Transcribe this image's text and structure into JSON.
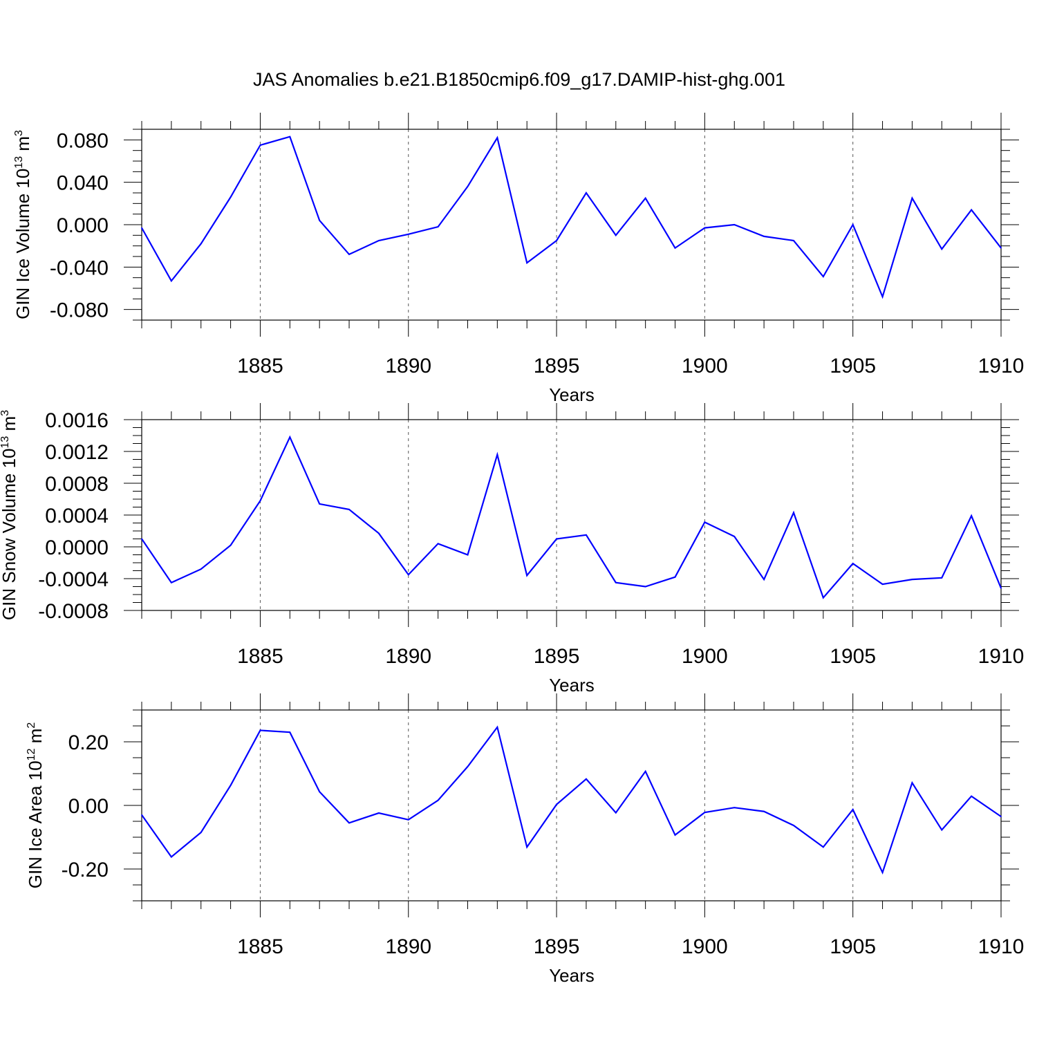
{
  "title": "JAS Anomalies b.e21.B1850cmip6.f09_g17.DAMIP-hist-ghg.001",
  "chart_data": [
    {
      "type": "line",
      "ylabel": "GIN Ice Volume 10",
      "ylabel_exp": "13",
      "ylabel_unit": "m",
      "ylabel_unit_exp": "3",
      "xlabel": "Years",
      "xlim": [
        1881,
        1910
      ],
      "ylim": [
        -0.09,
        0.09
      ],
      "yticks": [
        -0.08,
        -0.04,
        0.0,
        0.04,
        0.08
      ],
      "ytick_labels": [
        "-0.080",
        "-0.040",
        "0.000",
        "0.040",
        "0.080"
      ],
      "xticks": [
        1885,
        1890,
        1895,
        1900,
        1905,
        1910
      ],
      "xtick_labels": [
        "1885",
        "1890",
        "1895",
        "1900",
        "1905",
        "1910"
      ],
      "color": "#0000ff",
      "x": [
        1881,
        1882,
        1883,
        1884,
        1885,
        1886,
        1887,
        1888,
        1889,
        1890,
        1891,
        1892,
        1893,
        1894,
        1895,
        1896,
        1897,
        1898,
        1899,
        1900,
        1901,
        1902,
        1903,
        1904,
        1905,
        1906,
        1907,
        1908,
        1909,
        1910
      ],
      "values": [
        -0.003,
        -0.053,
        -0.018,
        0.026,
        0.075,
        0.083,
        0.004,
        -0.028,
        -0.015,
        -0.009,
        -0.002,
        0.036,
        0.082,
        -0.036,
        -0.015,
        0.03,
        -0.01,
        0.025,
        -0.022,
        -0.003,
        0.0,
        -0.011,
        -0.015,
        -0.049,
        0.0,
        -0.068,
        0.025,
        -0.023,
        0.014,
        -0.022
      ]
    },
    {
      "type": "line",
      "ylabel": "GIN Snow Volume 10",
      "ylabel_exp": "13",
      "ylabel_unit": "m",
      "ylabel_unit_exp": "3",
      "xlabel": "Years",
      "xlim": [
        1881,
        1910
      ],
      "ylim": [
        -0.0008,
        0.0016
      ],
      "yticks": [
        -0.0008,
        -0.0004,
        0.0,
        0.0004,
        0.0008,
        0.0012,
        0.0016
      ],
      "ytick_labels": [
        "-0.0008",
        "-0.0004",
        "0.0000",
        "0.0004",
        "0.0008",
        "0.0012",
        "0.0016"
      ],
      "xticks": [
        1885,
        1890,
        1895,
        1900,
        1905,
        1910
      ],
      "xtick_labels": [
        "1885",
        "1890",
        "1895",
        "1900",
        "1905",
        "1910"
      ],
      "color": "#0000ff",
      "x": [
        1881,
        1882,
        1883,
        1884,
        1885,
        1886,
        1887,
        1888,
        1889,
        1890,
        1891,
        1892,
        1893,
        1894,
        1895,
        1896,
        1897,
        1898,
        1899,
        1900,
        1901,
        1902,
        1903,
        1904,
        1905,
        1906,
        1907,
        1908,
        1909,
        1910
      ],
      "values": [
        0.0001,
        -0.00045,
        -0.00028,
        2e-05,
        0.00058,
        0.00138,
        0.00054,
        0.00047,
        0.00017,
        -0.00035,
        4e-05,
        -0.0001,
        0.00116,
        -0.00036,
        0.0001,
        0.00015,
        -0.00045,
        -0.0005,
        -0.00038,
        0.00031,
        0.00013,
        -0.00041,
        0.00043,
        -0.00064,
        -0.00021,
        -0.00047,
        -0.00041,
        -0.00039,
        0.00039,
        -0.00052
      ]
    },
    {
      "type": "line",
      "ylabel": "GIN Ice Area 10",
      "ylabel_exp": "12",
      "ylabel_unit": "m",
      "ylabel_unit_exp": "2",
      "xlabel": "Years",
      "xlim": [
        1881,
        1910
      ],
      "ylim": [
        -0.3,
        0.3
      ],
      "yticks": [
        -0.2,
        0.0,
        0.2
      ],
      "ytick_labels": [
        "-0.20",
        "0.00",
        "0.20"
      ],
      "xticks": [
        1885,
        1890,
        1895,
        1900,
        1905,
        1910
      ],
      "xtick_labels": [
        "1885",
        "1890",
        "1895",
        "1900",
        "1905",
        "1910"
      ],
      "color": "#0000ff",
      "x": [
        1881,
        1882,
        1883,
        1884,
        1885,
        1886,
        1887,
        1888,
        1889,
        1890,
        1891,
        1892,
        1893,
        1894,
        1895,
        1896,
        1897,
        1898,
        1899,
        1900,
        1901,
        1902,
        1903,
        1904,
        1905,
        1906,
        1907,
        1908,
        1909,
        1910
      ],
      "values": [
        -0.03,
        -0.162,
        -0.085,
        0.063,
        0.236,
        0.23,
        0.043,
        -0.055,
        -0.024,
        -0.045,
        0.016,
        0.122,
        0.246,
        -0.131,
        0.003,
        0.083,
        -0.023,
        0.107,
        -0.093,
        -0.022,
        -0.007,
        -0.019,
        -0.063,
        -0.131,
        -0.013,
        -0.211,
        0.071,
        -0.077,
        0.029,
        -0.035
      ]
    }
  ]
}
